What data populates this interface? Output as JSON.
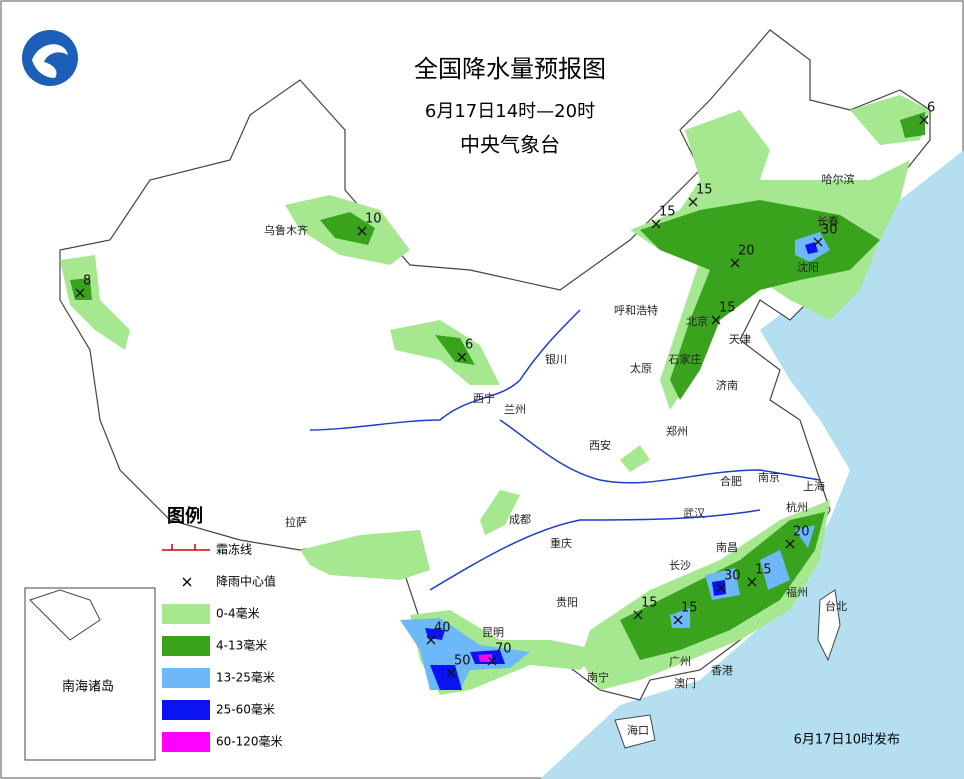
{
  "header": {
    "title": "全国降水量预报图",
    "time": "6月17日14时—20时",
    "issuer": "中央气象台"
  },
  "legend": {
    "title": "图例",
    "items": [
      {
        "label": "霜冻线",
        "color": "#d00000"
      },
      {
        "label": "降雨中心值",
        "color": "#000000"
      },
      {
        "label": "0-4毫米",
        "color": "#a6e890"
      },
      {
        "label": "4-13毫米",
        "color": "#3aa31e"
      },
      {
        "label": "13-25毫米",
        "color": "#6cb8f8"
      },
      {
        "label": "25-60毫米",
        "color": "#0a14f0"
      },
      {
        "label": "60-120毫米",
        "color": "#ff00ff"
      }
    ]
  },
  "cities": [
    "哈尔滨",
    "长春",
    "沈阳",
    "乌鲁木齐",
    "呼和浩特",
    "北京",
    "天津",
    "石家庄",
    "太原",
    "济南",
    "银川",
    "西宁",
    "兰州",
    "郑州",
    "西安",
    "合肥",
    "南京",
    "上海",
    "杭州",
    "武汉",
    "成都",
    "拉萨",
    "重庆",
    "长沙",
    "南昌",
    "福州",
    "台北",
    "贵阳",
    "昆明",
    "南宁",
    "广州",
    "香港",
    "澳门",
    "海口"
  ],
  "rain_centers": [
    6,
    10,
    8,
    15,
    15,
    20,
    30,
    15,
    6,
    40,
    50,
    70,
    15,
    15,
    30,
    15,
    20
  ],
  "inset": {
    "label": "南海诸岛"
  },
  "footer": "6月17日10时发布"
}
